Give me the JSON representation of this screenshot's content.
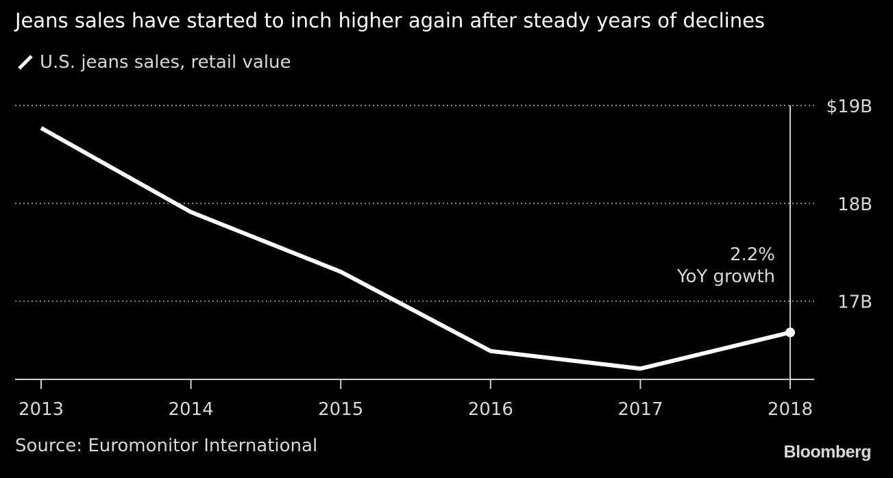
{
  "chart_data": {
    "type": "line",
    "title": "Jeans sales have started to inch higher again after steady years of declines",
    "legend": {
      "placement": "top-left"
    },
    "series": [
      {
        "name": "U.S. jeans sales, retail value",
        "x": [
          "2013",
          "2014",
          "2015",
          "2016",
          "2017",
          "2018"
        ],
        "values": [
          18.77,
          17.91,
          17.3,
          16.49,
          16.31,
          16.68
        ]
      }
    ],
    "y_ticks": [
      {
        "value": 19,
        "label": "$19B"
      },
      {
        "value": 18,
        "label": "18B"
      },
      {
        "value": 17,
        "label": "17B"
      }
    ],
    "ylim": [
      16.2,
      19.0
    ],
    "xlabel": "",
    "ylabel": "",
    "grid": true,
    "annotation": {
      "x": "2018",
      "value_label": "2.2%",
      "text": "YoY growth"
    },
    "source": "Source: Euromonitor International",
    "brand": "Bloomberg",
    "colors": {
      "background": "#000000",
      "line": "#ffffff",
      "grid": "#8c8c8c",
      "text": "#d8d8d8"
    }
  }
}
